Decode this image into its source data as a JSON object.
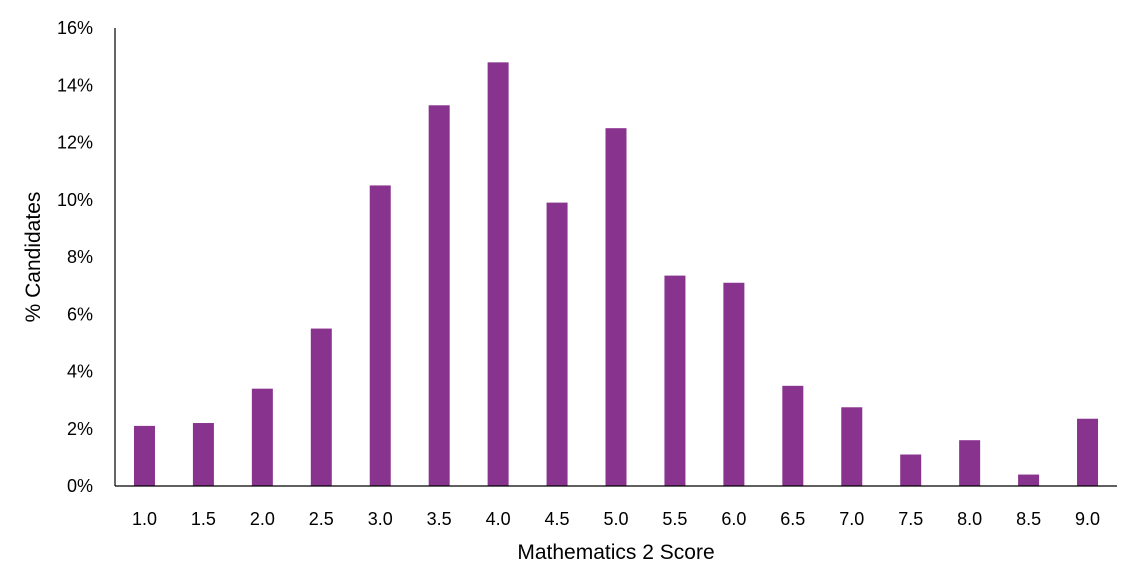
{
  "chart_data": {
    "type": "bar",
    "title": "",
    "xlabel": "Mathematics 2 Score",
    "ylabel": "% Candidates",
    "categories": [
      "1.0",
      "1.5",
      "2.0",
      "2.5",
      "3.0",
      "3.5",
      "4.0",
      "4.5",
      "5.0",
      "5.5",
      "6.0",
      "6.5",
      "7.0",
      "7.5",
      "8.0",
      "8.5",
      "9.0"
    ],
    "values": [
      2.1,
      2.2,
      3.4,
      5.5,
      10.5,
      13.3,
      14.8,
      9.9,
      12.5,
      7.35,
      7.1,
      3.5,
      2.75,
      1.1,
      1.6,
      0.4,
      2.35
    ],
    "yticks": [
      "0%",
      "2%",
      "4%",
      "6%",
      "8%",
      "10%",
      "12%",
      "14%",
      "16%"
    ],
    "ylim": [
      0,
      16
    ],
    "grid": false,
    "legend": "none",
    "bar_color": "#88338D",
    "axis_color": "#000000"
  }
}
